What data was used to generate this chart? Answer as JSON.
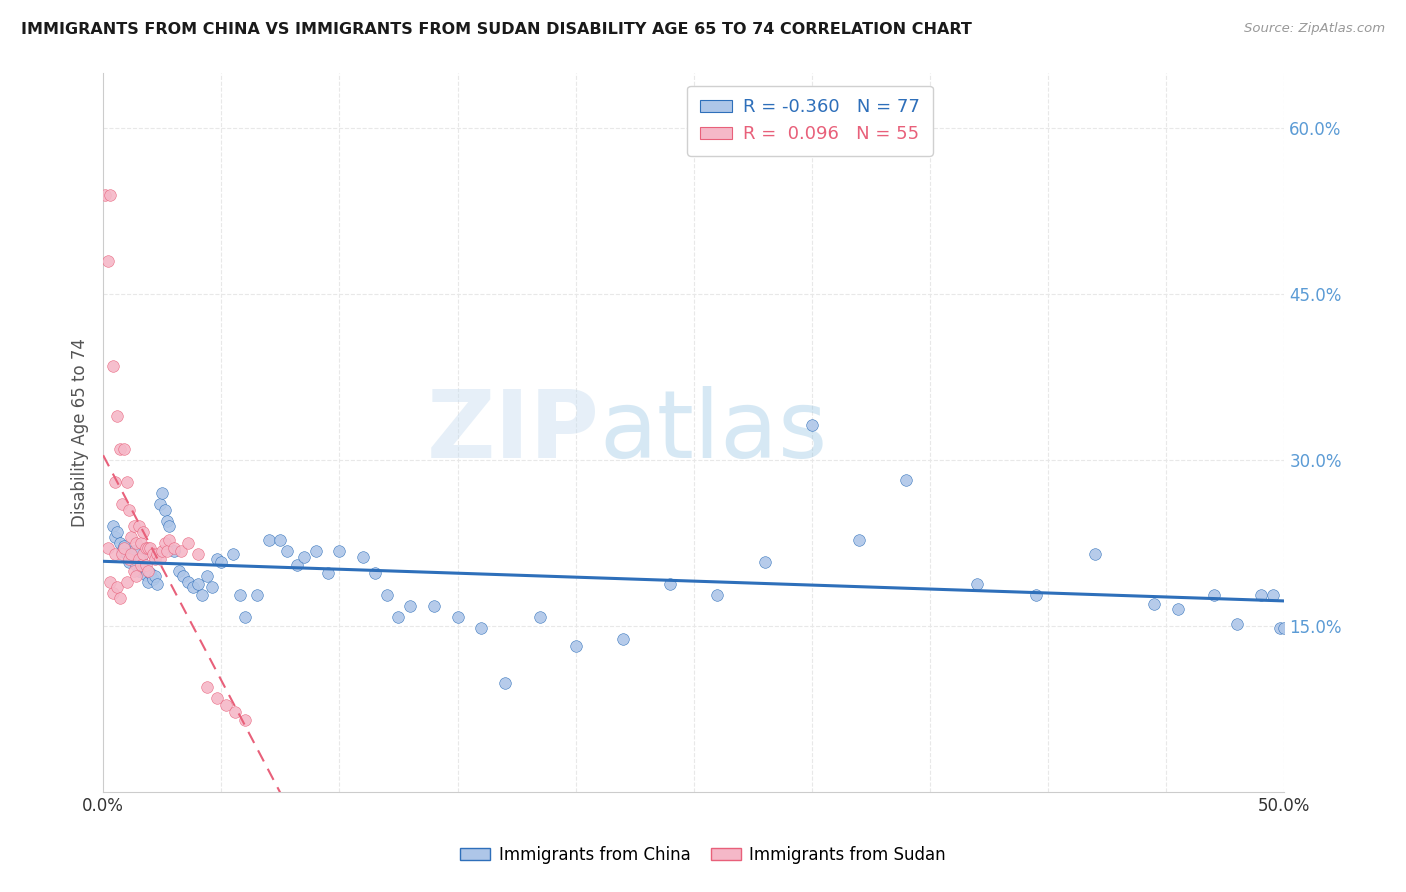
{
  "title": "IMMIGRANTS FROM CHINA VS IMMIGRANTS FROM SUDAN DISABILITY AGE 65 TO 74 CORRELATION CHART",
  "source": "Source: ZipAtlas.com",
  "ylabel": "Disability Age 65 to 74",
  "xlim": [
    0.0,
    0.5
  ],
  "ylim": [
    0.0,
    0.65
  ],
  "xticks": [
    0.0,
    0.05,
    0.1,
    0.15,
    0.2,
    0.25,
    0.3,
    0.35,
    0.4,
    0.45,
    0.5
  ],
  "xticklabels": [
    "0.0%",
    "",
    "",
    "",
    "",
    "",
    "",
    "",
    "",
    "",
    "50.0%"
  ],
  "yticks": [
    0.0,
    0.15,
    0.3,
    0.45,
    0.6
  ],
  "yticklabels": [
    "",
    "15.0%",
    "30.0%",
    "45.0%",
    "60.0%"
  ],
  "china_R": -0.36,
  "china_N": 77,
  "sudan_R": 0.096,
  "sudan_N": 55,
  "china_color": "#aec6e8",
  "sudan_color": "#f5b8c8",
  "china_line_color": "#2e6fba",
  "sudan_line_color": "#e8607a",
  "watermark_zip": "ZIP",
  "watermark_atlas": "atlas",
  "background_color": "#ffffff",
  "grid_color": "#e8e8e8",
  "china_x": [
    0.004,
    0.005,
    0.006,
    0.007,
    0.008,
    0.009,
    0.01,
    0.011,
    0.012,
    0.013,
    0.014,
    0.015,
    0.016,
    0.017,
    0.018,
    0.019,
    0.02,
    0.021,
    0.022,
    0.023,
    0.024,
    0.025,
    0.026,
    0.027,
    0.028,
    0.03,
    0.032,
    0.034,
    0.036,
    0.038,
    0.04,
    0.042,
    0.044,
    0.046,
    0.048,
    0.05,
    0.055,
    0.058,
    0.06,
    0.065,
    0.07,
    0.075,
    0.078,
    0.082,
    0.085,
    0.09,
    0.095,
    0.1,
    0.11,
    0.115,
    0.12,
    0.125,
    0.13,
    0.14,
    0.15,
    0.16,
    0.17,
    0.185,
    0.2,
    0.22,
    0.24,
    0.26,
    0.28,
    0.3,
    0.32,
    0.34,
    0.37,
    0.395,
    0.42,
    0.445,
    0.455,
    0.47,
    0.48,
    0.49,
    0.495,
    0.498,
    0.5
  ],
  "china_y": [
    0.24,
    0.23,
    0.235,
    0.225,
    0.218,
    0.222,
    0.215,
    0.208,
    0.212,
    0.218,
    0.205,
    0.2,
    0.21,
    0.202,
    0.196,
    0.19,
    0.198,
    0.192,
    0.195,
    0.188,
    0.26,
    0.27,
    0.255,
    0.245,
    0.24,
    0.218,
    0.2,
    0.195,
    0.19,
    0.185,
    0.188,
    0.178,
    0.195,
    0.185,
    0.21,
    0.208,
    0.215,
    0.178,
    0.158,
    0.178,
    0.228,
    0.228,
    0.218,
    0.205,
    0.212,
    0.218,
    0.198,
    0.218,
    0.212,
    0.198,
    0.178,
    0.158,
    0.168,
    0.168,
    0.158,
    0.148,
    0.098,
    0.158,
    0.132,
    0.138,
    0.188,
    0.178,
    0.208,
    0.332,
    0.228,
    0.282,
    0.188,
    0.178,
    0.215,
    0.17,
    0.165,
    0.178,
    0.152,
    0.178,
    0.178,
    0.148,
    0.148
  ],
  "sudan_x": [
    0.001,
    0.002,
    0.002,
    0.003,
    0.003,
    0.004,
    0.004,
    0.005,
    0.005,
    0.006,
    0.006,
    0.007,
    0.007,
    0.008,
    0.008,
    0.009,
    0.009,
    0.01,
    0.01,
    0.011,
    0.011,
    0.012,
    0.012,
    0.013,
    0.013,
    0.014,
    0.014,
    0.015,
    0.015,
    0.016,
    0.016,
    0.017,
    0.017,
    0.018,
    0.018,
    0.019,
    0.019,
    0.02,
    0.021,
    0.022,
    0.023,
    0.024,
    0.025,
    0.026,
    0.027,
    0.028,
    0.03,
    0.033,
    0.036,
    0.04,
    0.044,
    0.048,
    0.052,
    0.056,
    0.06
  ],
  "sudan_y": [
    0.54,
    0.48,
    0.22,
    0.54,
    0.19,
    0.385,
    0.18,
    0.28,
    0.215,
    0.34,
    0.185,
    0.31,
    0.175,
    0.26,
    0.215,
    0.31,
    0.22,
    0.28,
    0.19,
    0.255,
    0.21,
    0.23,
    0.215,
    0.24,
    0.2,
    0.225,
    0.195,
    0.24,
    0.21,
    0.225,
    0.205,
    0.235,
    0.215,
    0.22,
    0.205,
    0.22,
    0.2,
    0.22,
    0.215,
    0.21,
    0.215,
    0.21,
    0.218,
    0.225,
    0.218,
    0.228,
    0.22,
    0.218,
    0.225,
    0.215,
    0.095,
    0.085,
    0.078,
    0.072,
    0.065
  ]
}
